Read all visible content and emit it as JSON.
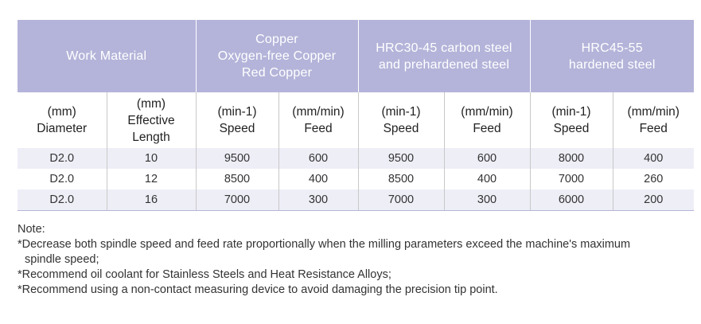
{
  "header": {
    "work_material": "Work Material",
    "copper_lines": [
      "Copper",
      "Oxygen-free Copper",
      "Red Copper"
    ],
    "hrc3045_lines": [
      "HRC30-45 carbon steel",
      "and prehardened steel"
    ],
    "hrc4555_lines": [
      "HRC45-55",
      "hardened steel"
    ]
  },
  "subheader": {
    "diameter": [
      "(mm)",
      "Diameter"
    ],
    "length": [
      "(mm)",
      "Effective",
      "Length"
    ],
    "speed": [
      "(min-1)",
      "Speed"
    ],
    "feed": [
      "(mm/min)",
      "Feed"
    ]
  },
  "rows": [
    {
      "diameter": "D2.0",
      "length": "10",
      "cu_speed": "9500",
      "cu_feed": "600",
      "m_speed": "9500",
      "m_feed": "600",
      "h_speed": "8000",
      "h_feed": "400"
    },
    {
      "diameter": "D2.0",
      "length": "12",
      "cu_speed": "8500",
      "cu_feed": "400",
      "m_speed": "8500",
      "m_feed": "400",
      "h_speed": "7000",
      "h_feed": "260"
    },
    {
      "diameter": "D2.0",
      "length": "16",
      "cu_speed": "7000",
      "cu_feed": "300",
      "m_speed": "7000",
      "m_feed": "300",
      "h_speed": "6000",
      "h_feed": "200"
    }
  ],
  "notes": {
    "title": "Note:",
    "line1a": "*Decrease both spindle speed and feed rate proportionally when the milling parameters exceed the machine's maximum",
    "line1b": "spindle speed;",
    "line2": "*Recommend oil coolant for Stainless Steels and Heat Resistance Alloys;",
    "line3": "*Recommend using a non-contact measuring device to avoid damaging the precision tip point."
  },
  "colors": {
    "header_bg": "#b4b4da",
    "row_shade": "#eeeef7"
  }
}
